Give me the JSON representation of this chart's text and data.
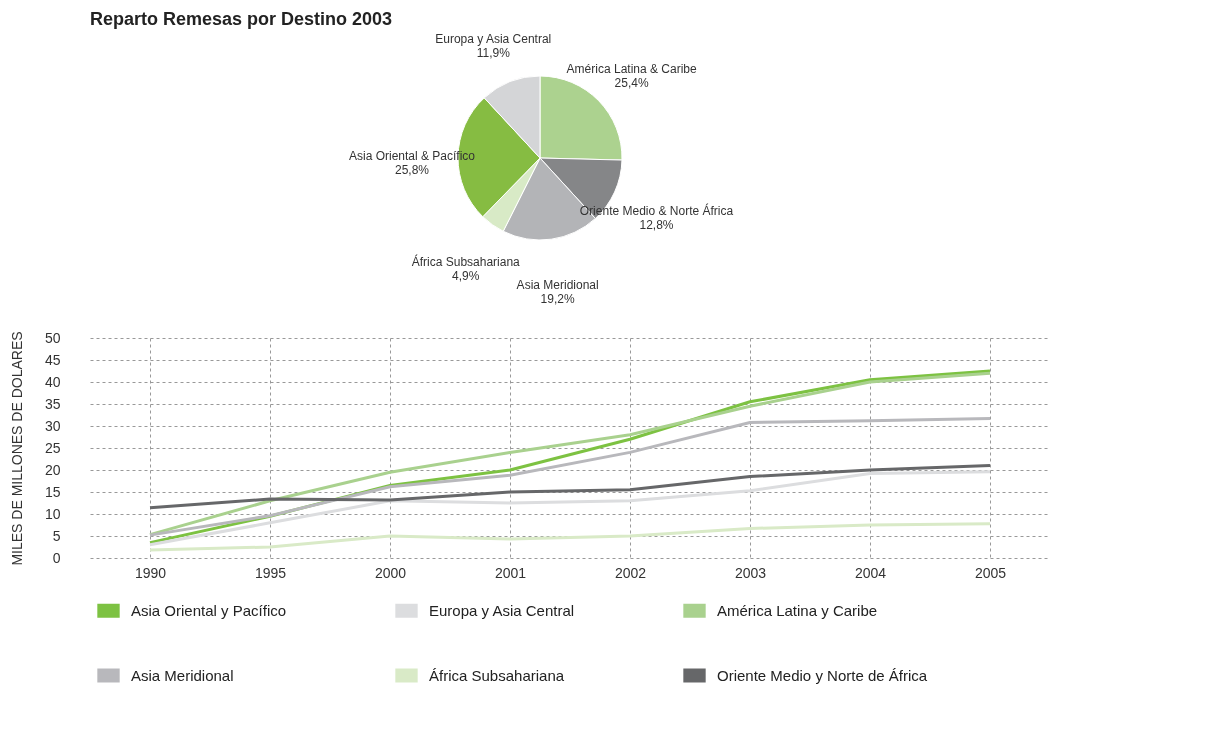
{
  "chart_data": [
    {
      "type": "pie",
      "title": "Reparto Remesas por Destino 2003",
      "categories": [
        "América Latina & Caribe",
        "Oriente Medio & Norte África",
        "Asia Meridional",
        "África Subsahariana",
        "Asia Oriental & Pacífico",
        "Europa y Asia Central"
      ],
      "values": [
        25.4,
        12.8,
        19.2,
        4.9,
        25.8,
        11.9
      ],
      "value_labels": [
        "25,4%",
        "12,8%",
        "19,2%",
        "4,9%",
        "25,8%",
        "11,9%"
      ],
      "colors": [
        "#acd28f",
        "#858688",
        "#b3b4b7",
        "#d8eac6",
        "#86bc42",
        "#d4d5d7"
      ]
    },
    {
      "type": "line",
      "ylabel": "MILES DE MILLONES DE DOLARES",
      "categories": [
        "1990",
        "1995",
        "2000",
        "2001",
        "2002",
        "2003",
        "2004",
        "2005"
      ],
      "ylim": [
        0,
        50
      ],
      "yticks": [
        0,
        5,
        10,
        15,
        20,
        25,
        30,
        35,
        40,
        45,
        50
      ],
      "grid": true,
      "legend": "bottom",
      "line_style": "solid",
      "series": [
        {
          "name": "Asia Oriental y Pacífico",
          "color": "#7dc242",
          "values": [
            3.5,
            9.5,
            16.5,
            20,
            27,
            35.5,
            40.5,
            42.5
          ]
        },
        {
          "name": "Europa y Asia Central",
          "color": "#dcdddf",
          "values": [
            3,
            8,
            13,
            12.5,
            13,
            15.3,
            19.2,
            19.6
          ]
        },
        {
          "name": "América Latina y Caribe",
          "color": "#a9d18e",
          "values": [
            5.3,
            13,
            19.5,
            24,
            28,
            34.5,
            40,
            42
          ]
        },
        {
          "name": "Asia Meridional",
          "color": "#b8b8bc",
          "values": [
            5.2,
            9.6,
            16.2,
            18.8,
            24,
            30.8,
            31.2,
            31.7
          ]
        },
        {
          "name": "África Subsahariana",
          "color": "#d9eac7",
          "values": [
            1.8,
            2.5,
            5,
            4.3,
            5,
            6.7,
            7.5,
            7.8
          ]
        },
        {
          "name": "Oriente Medio y Norte de África",
          "color": "#666769",
          "values": [
            11.4,
            13.4,
            13.2,
            15,
            15.5,
            18.5,
            20,
            21
          ]
        }
      ]
    }
  ]
}
